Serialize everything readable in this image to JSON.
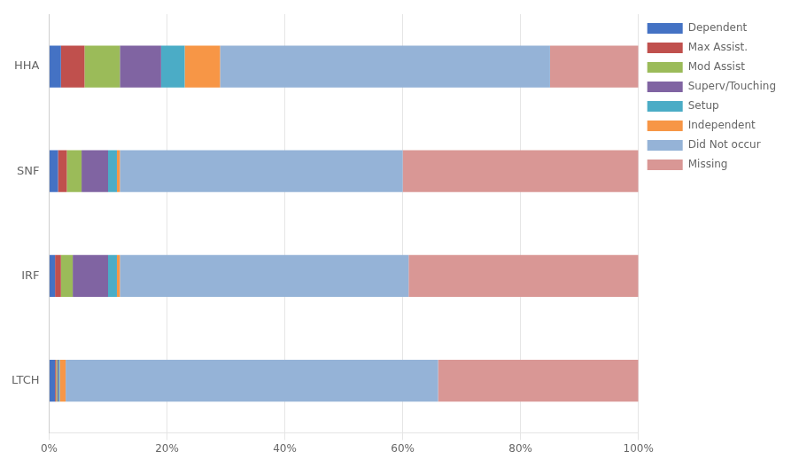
{
  "chart_data": {
    "type": "bar",
    "orientation": "horizontal",
    "stacked": true,
    "categories": [
      "HHA",
      "SNF",
      "IRF",
      "LTCH"
    ],
    "series": [
      {
        "name": "Dependent",
        "color": "#4472C4",
        "values": [
          2.0,
          1.5,
          1.0,
          1.0
        ]
      },
      {
        "name": "Max Assist.",
        "color": "#C0504D",
        "values": [
          4.0,
          1.5,
          1.0,
          0.2
        ]
      },
      {
        "name": "Mod Assist",
        "color": "#9BBB59",
        "values": [
          6.0,
          2.5,
          2.0,
          0.2
        ]
      },
      {
        "name": "Superv/Touching",
        "color": "#8064A2",
        "values": [
          7.0,
          4.5,
          6.0,
          0.2
        ]
      },
      {
        "name": "Setup",
        "color": "#4BACC6",
        "values": [
          4.0,
          1.5,
          1.5,
          0.2
        ]
      },
      {
        "name": "Independent",
        "color": "#F79646",
        "values": [
          6.0,
          0.5,
          0.5,
          1.0
        ]
      },
      {
        "name": "Did Not occur",
        "color": "#95B3D7",
        "values": [
          56.0,
          48.0,
          49.0,
          63.2
        ]
      },
      {
        "name": "Missing",
        "color": "#D99795",
        "values": [
          15.0,
          40.0,
          39.0,
          34.0
        ]
      }
    ],
    "xlim": [
      0,
      100
    ],
    "xticks": [
      {
        "value": 0,
        "label": "0%"
      },
      {
        "value": 20,
        "label": "20%"
      },
      {
        "value": 40,
        "label": "40%"
      },
      {
        "value": 60,
        "label": "60%"
      },
      {
        "value": 80,
        "label": "80%"
      },
      {
        "value": 100,
        "label": "100%"
      }
    ],
    "grid": true,
    "legend": "right"
  }
}
